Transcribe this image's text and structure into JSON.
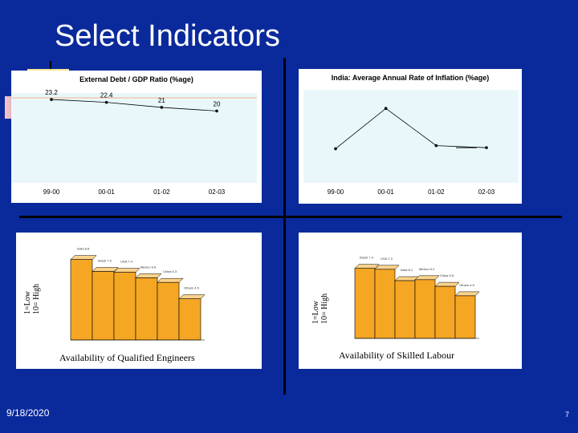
{
  "slide": {
    "title": "Select Indicators",
    "date": "9/18/2020",
    "page": "7"
  },
  "chart_data": [
    {
      "type": "line",
      "title": "External Debt / GDP Ratio (%age)",
      "categories": [
        "99-00",
        "00-01",
        "01-02",
        "02-03"
      ],
      "values": [
        23.2,
        22.4,
        21,
        20
      ],
      "value_labels": [
        "23.2",
        "22.4",
        "21",
        "20"
      ],
      "ylim": [
        0,
        25
      ],
      "colors": {
        "line": "#000000",
        "plot_bg": "#e9f7fb",
        "grid": "#f3b08a"
      }
    },
    {
      "type": "line",
      "title": "India: Average Annual Rate of Inflation (%age)",
      "categories": [
        "99-00",
        "00-01",
        "01-02",
        "02-03"
      ],
      "values": [
        3.3,
        7.2,
        3.6,
        3.4
      ],
      "ylim": [
        0,
        9
      ],
      "colors": {
        "line": "#000000",
        "plot_bg": "#e9f7fb"
      }
    },
    {
      "type": "bar",
      "title": "Availability of Qualified Engineers",
      "ylabel": [
        "1=Low",
        "10= High"
      ],
      "bar_labels": [
        "India 8.8",
        "Brazil 7.5",
        "USA 7.4",
        "Mexico 6.8",
        "China 6.3",
        "Others 4.5"
      ],
      "values": [
        8.8,
        7.5,
        7.4,
        6.8,
        6.3,
        4.5
      ],
      "ylim": [
        0,
        10
      ],
      "colors": {
        "bar": "#f5a623",
        "bar_top": "#fbd38a"
      }
    },
    {
      "type": "bar",
      "title": "Availability of Skilled Labour",
      "ylabel": [
        "1=Low",
        "10= High"
      ],
      "bar_labels": [
        "Brazil 7.4",
        "USA 7.3",
        "India 6.1",
        "Mexico 6.2",
        "China 5.5",
        "Others 4.5"
      ],
      "values": [
        7.4,
        7.3,
        6.1,
        6.2,
        5.5,
        4.5
      ],
      "ylim": [
        0,
        10
      ],
      "colors": {
        "bar": "#f5a623",
        "bar_top": "#fbd38a"
      }
    }
  ]
}
